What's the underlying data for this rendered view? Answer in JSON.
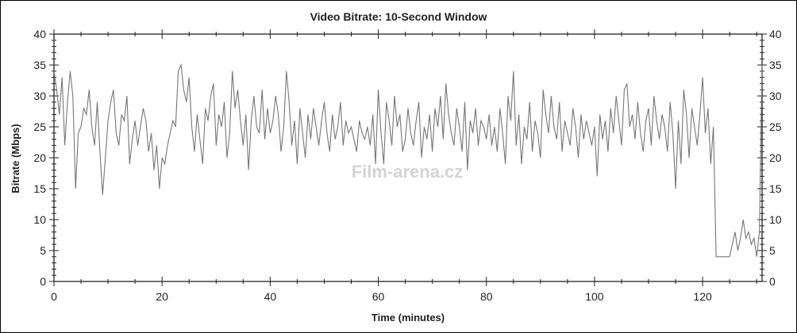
{
  "chart_data": {
    "type": "line",
    "title": "Video Bitrate: 10-Second Window",
    "xlabel": "Time (minutes)",
    "ylabel": "Bitrate (Mbps)",
    "xlim": [
      0,
      131
    ],
    "ylim": [
      0,
      40
    ],
    "x_ticks": [
      0,
      20,
      40,
      60,
      80,
      100,
      120
    ],
    "y_ticks": [
      0,
      5,
      10,
      15,
      20,
      25,
      30,
      35,
      40
    ],
    "grid": false,
    "legend": "none",
    "line_color": "#777777",
    "watermark": "Film-arena.cz",
    "series": [
      {
        "x": [
          0,
          0.5,
          1,
          1.5,
          2,
          2.5,
          3,
          3.5,
          4,
          4.5,
          5,
          5.5,
          6,
          6.5,
          7,
          7.5,
          8,
          8.5,
          9,
          9.5,
          10,
          10.5,
          11,
          11.5,
          12,
          12.5,
          13,
          13.5,
          14,
          14.5,
          15,
          15.5,
          16,
          16.5,
          17,
          17.5,
          18,
          18.5,
          19,
          19.5,
          20,
          20.5,
          21,
          21.5,
          22,
          22.5,
          23,
          23.5,
          24,
          24.5,
          25,
          25.5,
          26,
          26.5,
          27,
          27.5,
          28,
          28.5,
          29,
          29.5,
          30,
          30.5,
          31,
          31.5,
          32,
          32.5,
          33,
          33.5,
          34,
          34.5,
          35,
          35.5,
          36,
          36.5,
          37,
          37.5,
          38,
          38.5,
          39,
          39.5,
          40,
          40.5,
          41,
          41.5,
          42,
          42.5,
          43,
          43.5,
          44,
          44.5,
          45,
          45.5,
          46,
          46.5,
          47,
          47.5,
          48,
          48.5,
          49,
          49.5,
          50,
          50.5,
          51,
          51.5,
          52,
          52.5,
          53,
          53.5,
          54,
          54.5,
          55,
          55.5,
          56,
          56.5,
          57,
          57.5,
          58,
          58.5,
          59,
          59.5,
          60,
          60.5,
          61,
          61.5,
          62,
          62.5,
          63,
          63.5,
          64,
          64.5,
          65,
          65.5,
          66,
          66.5,
          67,
          67.5,
          68,
          68.5,
          69,
          69.5,
          70,
          70.5,
          71,
          71.5,
          72,
          72.5,
          73,
          73.5,
          74,
          74.5,
          75,
          75.5,
          76,
          76.5,
          77,
          77.5,
          78,
          78.5,
          79,
          79.5,
          80,
          80.5,
          81,
          81.5,
          82,
          82.5,
          83,
          83.5,
          84,
          84.5,
          85,
          85.5,
          86,
          86.5,
          87,
          87.5,
          88,
          88.5,
          89,
          89.5,
          90,
          90.5,
          91,
          91.5,
          92,
          92.5,
          93,
          93.5,
          94,
          94.5,
          95,
          95.5,
          96,
          96.5,
          97,
          97.5,
          98,
          98.5,
          99,
          99.5,
          100,
          100.5,
          101,
          101.5,
          102,
          102.5,
          103,
          103.5,
          104,
          104.5,
          105,
          105.5,
          106,
          106.5,
          107,
          107.5,
          108,
          108.5,
          109,
          109.5,
          110,
          110.5,
          111,
          111.5,
          112,
          112.5,
          113,
          113.5,
          114,
          114.5,
          115,
          115.5,
          116,
          116.5,
          117,
          117.5,
          118,
          118.5,
          119,
          119.5,
          120,
          120.5,
          121,
          121.5,
          122,
          122.5,
          123,
          123.5,
          124,
          124.5,
          125,
          125.5,
          126,
          126.5,
          127,
          127.5,
          128,
          128.5,
          129,
          129.5,
          130,
          130.5,
          131
        ],
        "y": [
          34,
          31,
          27,
          33,
          22,
          29,
          34,
          30,
          15,
          24,
          25,
          28,
          27,
          31,
          25,
          22,
          29,
          21,
          14,
          20,
          26,
          29,
          31,
          24,
          22,
          27,
          26,
          30,
          19,
          23,
          26,
          22,
          25,
          28,
          26,
          21,
          24,
          18,
          22,
          15,
          20,
          19,
          22,
          24,
          26,
          25,
          34,
          35,
          31,
          29,
          33,
          25,
          21,
          27,
          23,
          19,
          28,
          26,
          30,
          32,
          22,
          27,
          25,
          29,
          20,
          24,
          34,
          28,
          31,
          26,
          22,
          27,
          18,
          26,
          30,
          25,
          24,
          31,
          23,
          28,
          24,
          26,
          30,
          27,
          21,
          25,
          34,
          29,
          22,
          26,
          19,
          28,
          24,
          20,
          27,
          23,
          28,
          25,
          22,
          26,
          29,
          24,
          21,
          27,
          23,
          25,
          29,
          22,
          26,
          24,
          25,
          23,
          21,
          26,
          24,
          23,
          25,
          22,
          27,
          19,
          31,
          24,
          19,
          29,
          26,
          22,
          30,
          25,
          27,
          21,
          23,
          28,
          24,
          22,
          26,
          29,
          20,
          25,
          23,
          27,
          21,
          28,
          25,
          30,
          23,
          32,
          27,
          24,
          22,
          28,
          25,
          21,
          29,
          18,
          26,
          24,
          28,
          22,
          26,
          25,
          23,
          27,
          22,
          25,
          21,
          28,
          24,
          19,
          30,
          26,
          34,
          22,
          27,
          19,
          25,
          23,
          29,
          21,
          26,
          24,
          20,
          31,
          27,
          24,
          30,
          25,
          23,
          29,
          21,
          26,
          24,
          22,
          28,
          25,
          20,
          27,
          23,
          26,
          24,
          22,
          25,
          17,
          27,
          23,
          26,
          21,
          28,
          24,
          30,
          26,
          22,
          31,
          32,
          25,
          27,
          23,
          29,
          24,
          21,
          26,
          28,
          22,
          30,
          26,
          23,
          27,
          25,
          21,
          29,
          24,
          15,
          26,
          19,
          31,
          27,
          20,
          28,
          25,
          22,
          27,
          33,
          24,
          28,
          19,
          25,
          4,
          4,
          4,
          4,
          4,
          4,
          6,
          8,
          5,
          7,
          10,
          7,
          8,
          6,
          7,
          4,
          8,
          35
        ]
      }
    ]
  }
}
